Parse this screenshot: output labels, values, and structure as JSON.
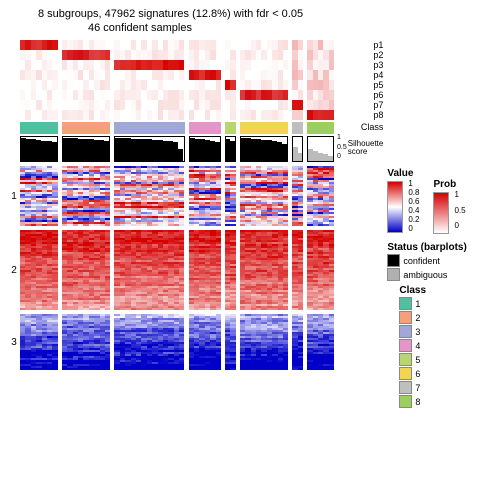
{
  "title": "8 subgroups, 47962 signatures (12.8%) with fdr < 0.05",
  "subtitle": "46 confident samples",
  "prob_rows": [
    "p1",
    "p2",
    "p3",
    "p4",
    "p5",
    "p6",
    "p7",
    "p8"
  ],
  "class_label": "Class",
  "sil_label": "Silhouette\nscore",
  "sil_ticks": [
    "1",
    "0.5",
    "0"
  ],
  "cluster_labels": [
    "1",
    "2",
    "3"
  ],
  "legends": {
    "value_title": "Value",
    "value_ticks": [
      "1",
      "0.8",
      "0.6",
      "0.4",
      "0.2",
      "0"
    ],
    "prob_title": "Prob",
    "prob_ticks": [
      "1",
      "0.5",
      "0"
    ],
    "status_title": "Status (barplots)",
    "status_items": [
      {
        "label": "confident",
        "color": "#000000"
      },
      {
        "label": "ambiguous",
        "color": "#b0b0b0"
      }
    ],
    "class_title": "Class",
    "class_items": [
      {
        "label": "1",
        "color": "#4fc1a1"
      },
      {
        "label": "2",
        "color": "#f4a07a"
      },
      {
        "label": "3",
        "color": "#9fa8d8"
      },
      {
        "label": "4",
        "color": "#e695c8"
      },
      {
        "label": "5",
        "color": "#b8d66f"
      },
      {
        "label": "6",
        "color": "#f2d552"
      },
      {
        "label": "7",
        "color": "#bfbfbf"
      },
      {
        "label": "8",
        "color": "#9bcf5f"
      }
    ]
  },
  "colors": {
    "value_low": "#0000c8",
    "value_mid": "#ffffff",
    "value_high": "#d40000",
    "prob_low": "#ffffff",
    "prob_high": "#d40000"
  },
  "groups": [
    {
      "class": 1,
      "n": 7,
      "color": "#4fc1a1",
      "sil": [
        0.95,
        0.92,
        0.9,
        0.88,
        0.85,
        0.82,
        0.78
      ],
      "amb": [
        0,
        0,
        0,
        0,
        0,
        0,
        0
      ]
    },
    {
      "class": 2,
      "n": 9,
      "color": "#f4a07a",
      "sil": [
        0.97,
        0.96,
        0.94,
        0.93,
        0.92,
        0.9,
        0.88,
        0.86,
        0.84
      ],
      "amb": [
        0,
        0,
        0,
        0,
        0,
        0,
        0,
        0,
        0
      ]
    },
    {
      "class": 3,
      "n": 13,
      "color": "#9fa8d8",
      "sil": [
        0.96,
        0.95,
        0.94,
        0.93,
        0.92,
        0.91,
        0.9,
        0.88,
        0.86,
        0.84,
        0.82,
        0.8,
        0.52
      ],
      "amb": [
        0,
        0,
        0,
        0,
        0,
        0,
        0,
        0,
        0,
        0,
        0,
        0,
        0
      ]
    },
    {
      "class": 4,
      "n": 6,
      "color": "#e695c8",
      "sil": [
        0.95,
        0.93,
        0.91,
        0.88,
        0.85,
        0.8
      ],
      "amb": [
        0,
        0,
        0,
        0,
        0,
        0
      ]
    },
    {
      "class": 5,
      "n": 2,
      "color": "#b8d66f",
      "sil": [
        0.9,
        0.82
      ],
      "amb": [
        0,
        0
      ]
    },
    {
      "class": 6,
      "n": 9,
      "color": "#f2d552",
      "sil": [
        0.96,
        0.94,
        0.92,
        0.9,
        0.88,
        0.86,
        0.84,
        0.8,
        0.7
      ],
      "amb": [
        0,
        0,
        0,
        0,
        0,
        0,
        0,
        0,
        0
      ]
    },
    {
      "class": 7,
      "n": 2,
      "color": "#bfbfbf",
      "sil": [
        0.6,
        0.35
      ],
      "amb": [
        1,
        1
      ]
    },
    {
      "class": 8,
      "n": 5,
      "color": "#9bcf5f",
      "sil": [
        0.5,
        0.42,
        0.35,
        0.3,
        0.22
      ],
      "amb": [
        1,
        1,
        1,
        1,
        1
      ]
    }
  ],
  "clusters": [
    {
      "label": "1",
      "rows": 30,
      "base_low": 0.1,
      "base_high": 0.85,
      "noise": 0.35
    },
    {
      "label": "2",
      "rows": 40,
      "base_low": 0.7,
      "base_high": 0.95,
      "noise": 0.15
    },
    {
      "label": "3",
      "rows": 28,
      "base_low": 0.05,
      "base_high": 0.25,
      "noise": 0.2
    }
  ],
  "layout": {
    "col_unit": 5.4,
    "gap": 4
  }
}
